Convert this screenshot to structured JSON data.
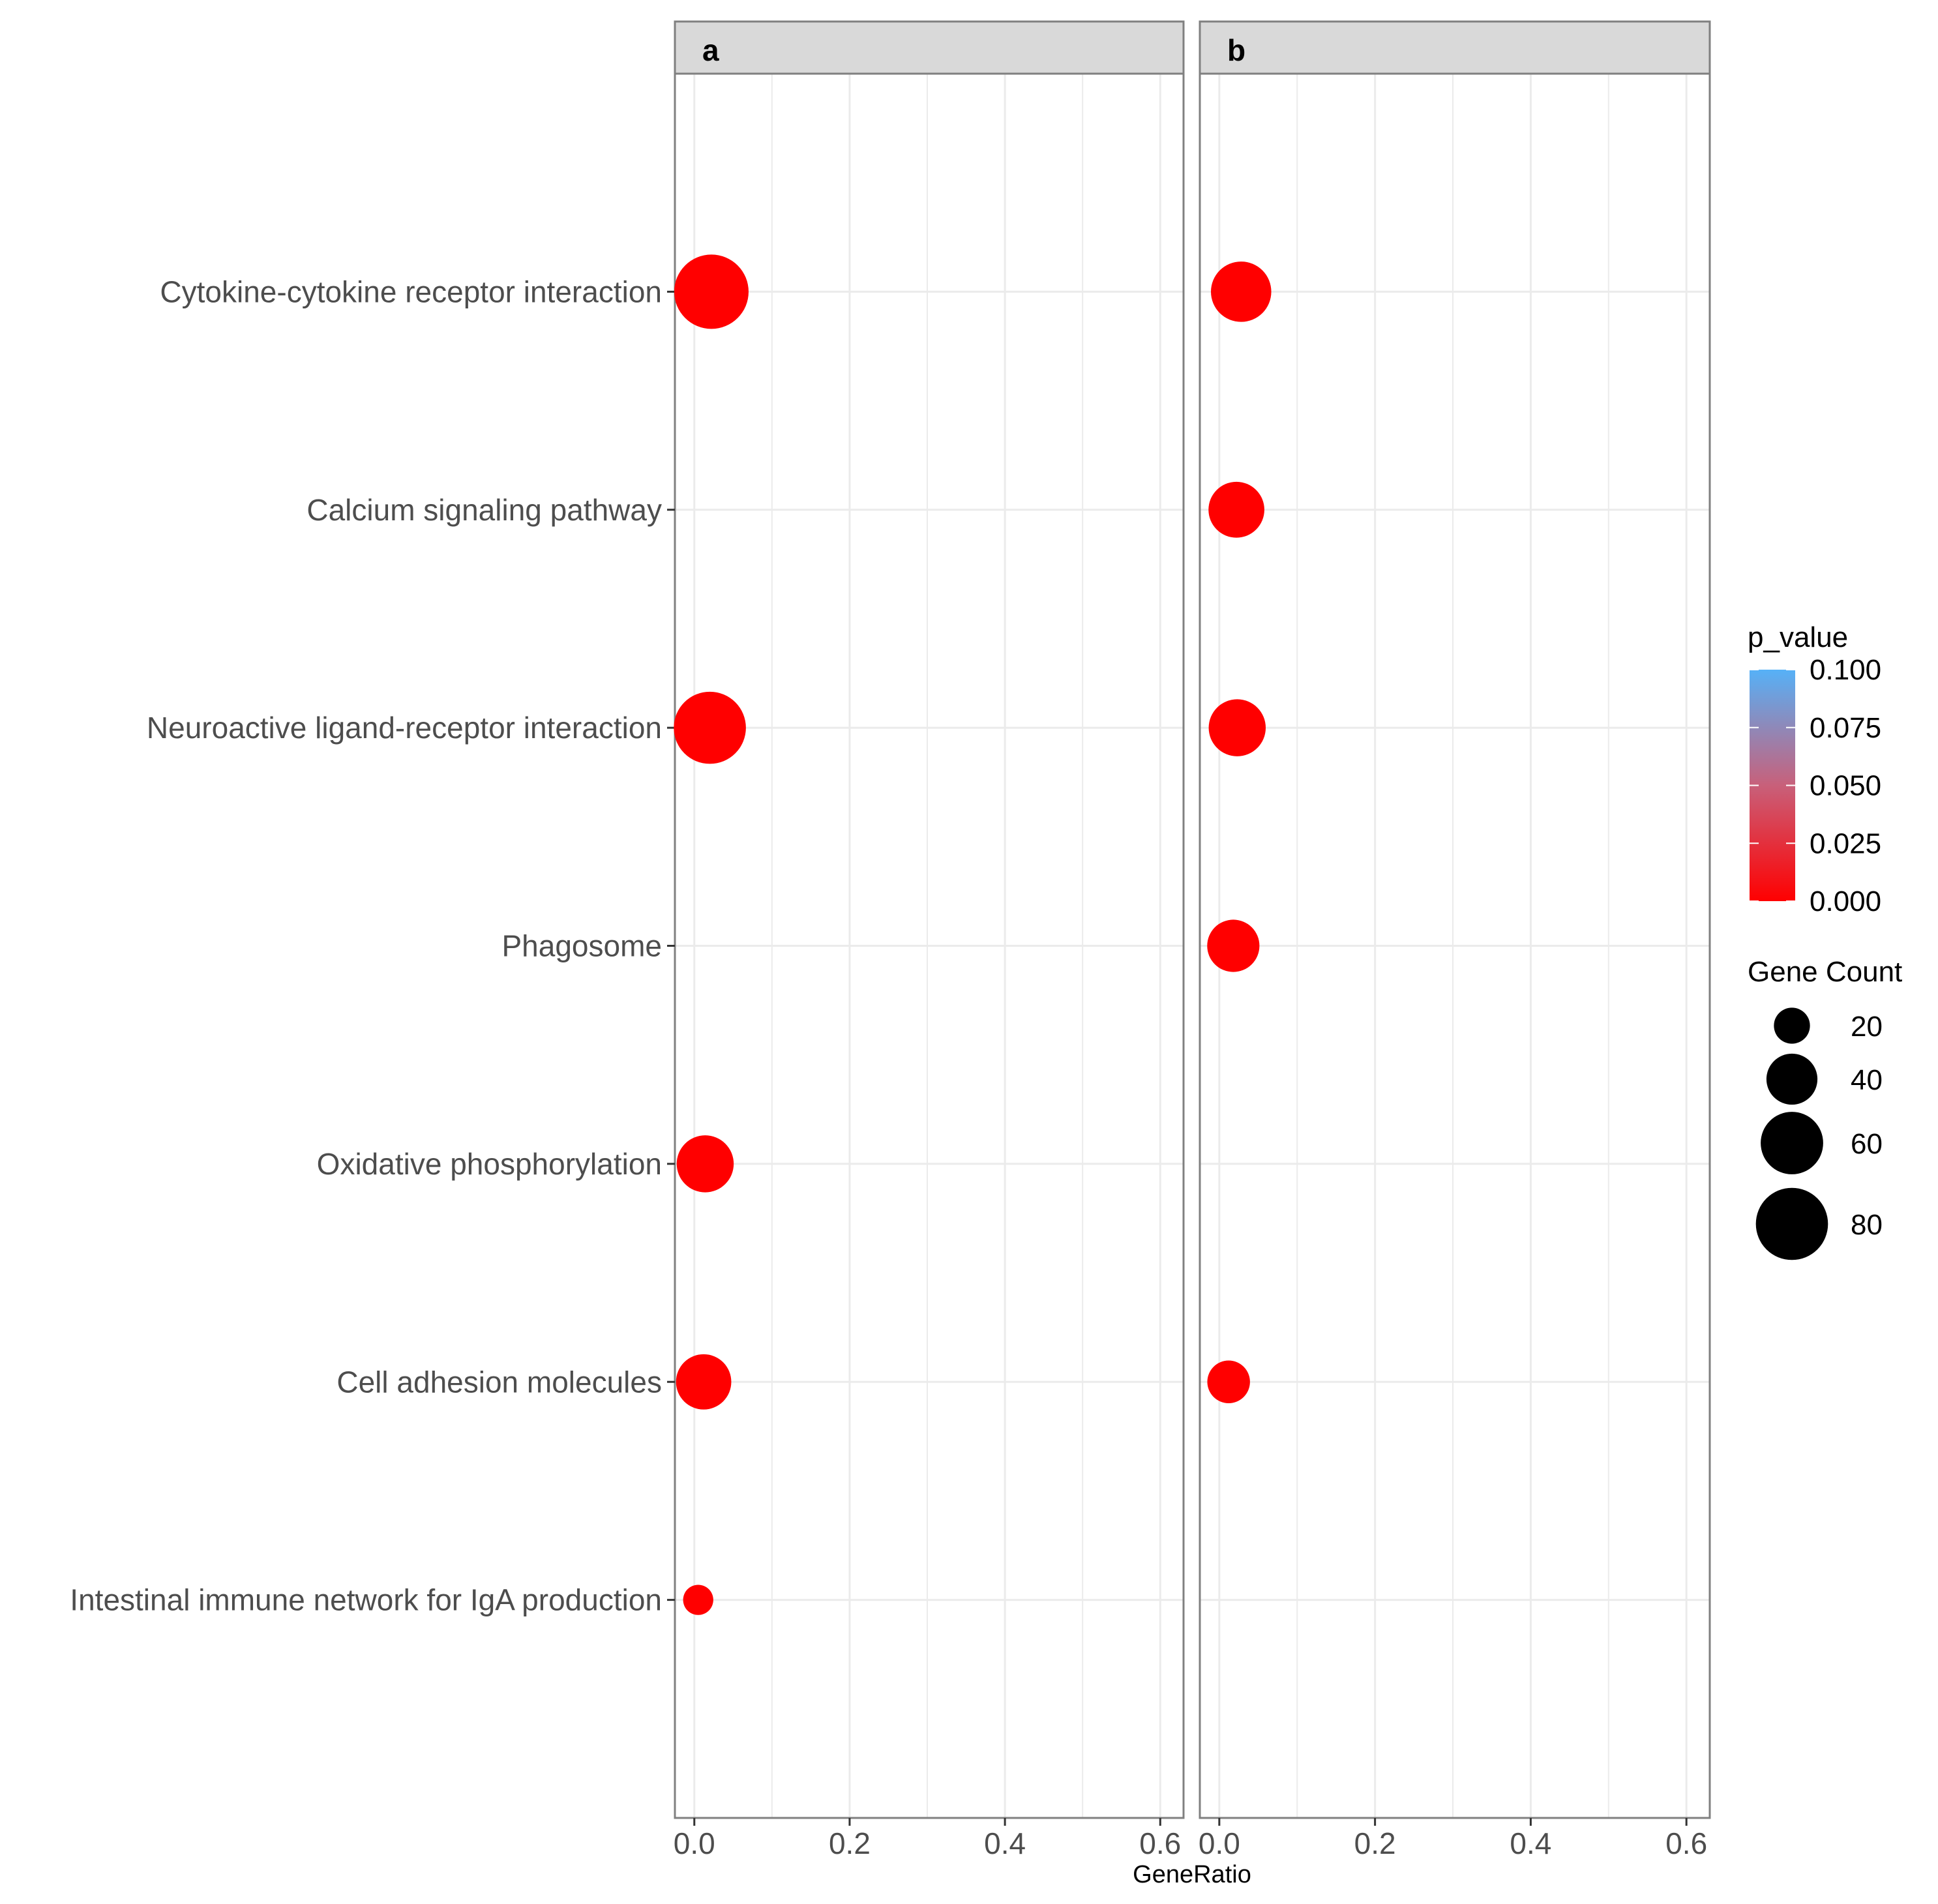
{
  "chart_data": {
    "type": "scatter",
    "subtype": "faceted dot plot",
    "title": "",
    "xlabel": "GeneRatio",
    "ylabel": "",
    "xlim": [
      -0.025,
      0.63
    ],
    "x_ticks": [
      0.0,
      0.2,
      0.4,
      0.6
    ],
    "x_tick_labels": [
      "0.0",
      "0.2",
      "0.4",
      "0.6"
    ],
    "grid": true,
    "categories": [
      "Cytokine-cytokine receptor interaction",
      "Calcium signaling pathway",
      "Neuroactive ligand-receptor interaction",
      "Phagosome",
      "Oxidative phosphorylation",
      "Cell adhesion molecules",
      "Intestinal immune network for IgA production"
    ],
    "facets": [
      {
        "label": "a",
        "points": [
          {
            "category": "Cytokine-cytokine receptor interaction",
            "gene_ratio": 0.022,
            "count": 85,
            "p_value": 0.0
          },
          {
            "category": "Neuroactive ligand-receptor interaction",
            "gene_ratio": 0.02,
            "count": 80,
            "p_value": 0.0
          },
          {
            "category": "Oxidative phosphorylation",
            "gene_ratio": 0.014,
            "count": 50,
            "p_value": 0.0
          },
          {
            "category": "Cell adhesion molecules",
            "gene_ratio": 0.012,
            "count": 47,
            "p_value": 0.0
          },
          {
            "category": "Intestinal immune network for IgA production",
            "gene_ratio": 0.005,
            "count": 14,
            "p_value": 0.0
          }
        ]
      },
      {
        "label": "b",
        "points": [
          {
            "category": "Cytokine-cytokine receptor interaction",
            "gene_ratio": 0.028,
            "count": 56,
            "p_value": 0.0
          },
          {
            "category": "Calcium signaling pathway",
            "gene_ratio": 0.022,
            "count": 48,
            "p_value": 0.0
          },
          {
            "category": "Neuroactive ligand-receptor interaction",
            "gene_ratio": 0.023,
            "count": 50,
            "p_value": 0.0
          },
          {
            "category": "Phagosome",
            "gene_ratio": 0.018,
            "count": 42,
            "p_value": 0.0
          },
          {
            "category": "Cell adhesion molecules",
            "gene_ratio": 0.012,
            "count": 28,
            "p_value": 0.0
          }
        ]
      }
    ],
    "color_legend": {
      "title": "p_value",
      "ticks": [
        0.0,
        0.025,
        0.05,
        0.075,
        0.1
      ],
      "tick_labels": [
        "0.000",
        "0.025",
        "0.050",
        "0.075",
        "0.100"
      ],
      "low_color": "#ff0000",
      "high_color": "#56b1f7"
    },
    "size_legend": {
      "title": "Gene Count",
      "values": [
        20,
        40,
        60,
        80
      ],
      "labels": [
        "20",
        "40",
        "60",
        "80"
      ]
    },
    "legend_position": "right",
    "colors": {
      "point": "#ff0000",
      "strip_fill": "#d9d9d9",
      "panel_border": "#808080",
      "grid": "#ebebeb"
    }
  }
}
